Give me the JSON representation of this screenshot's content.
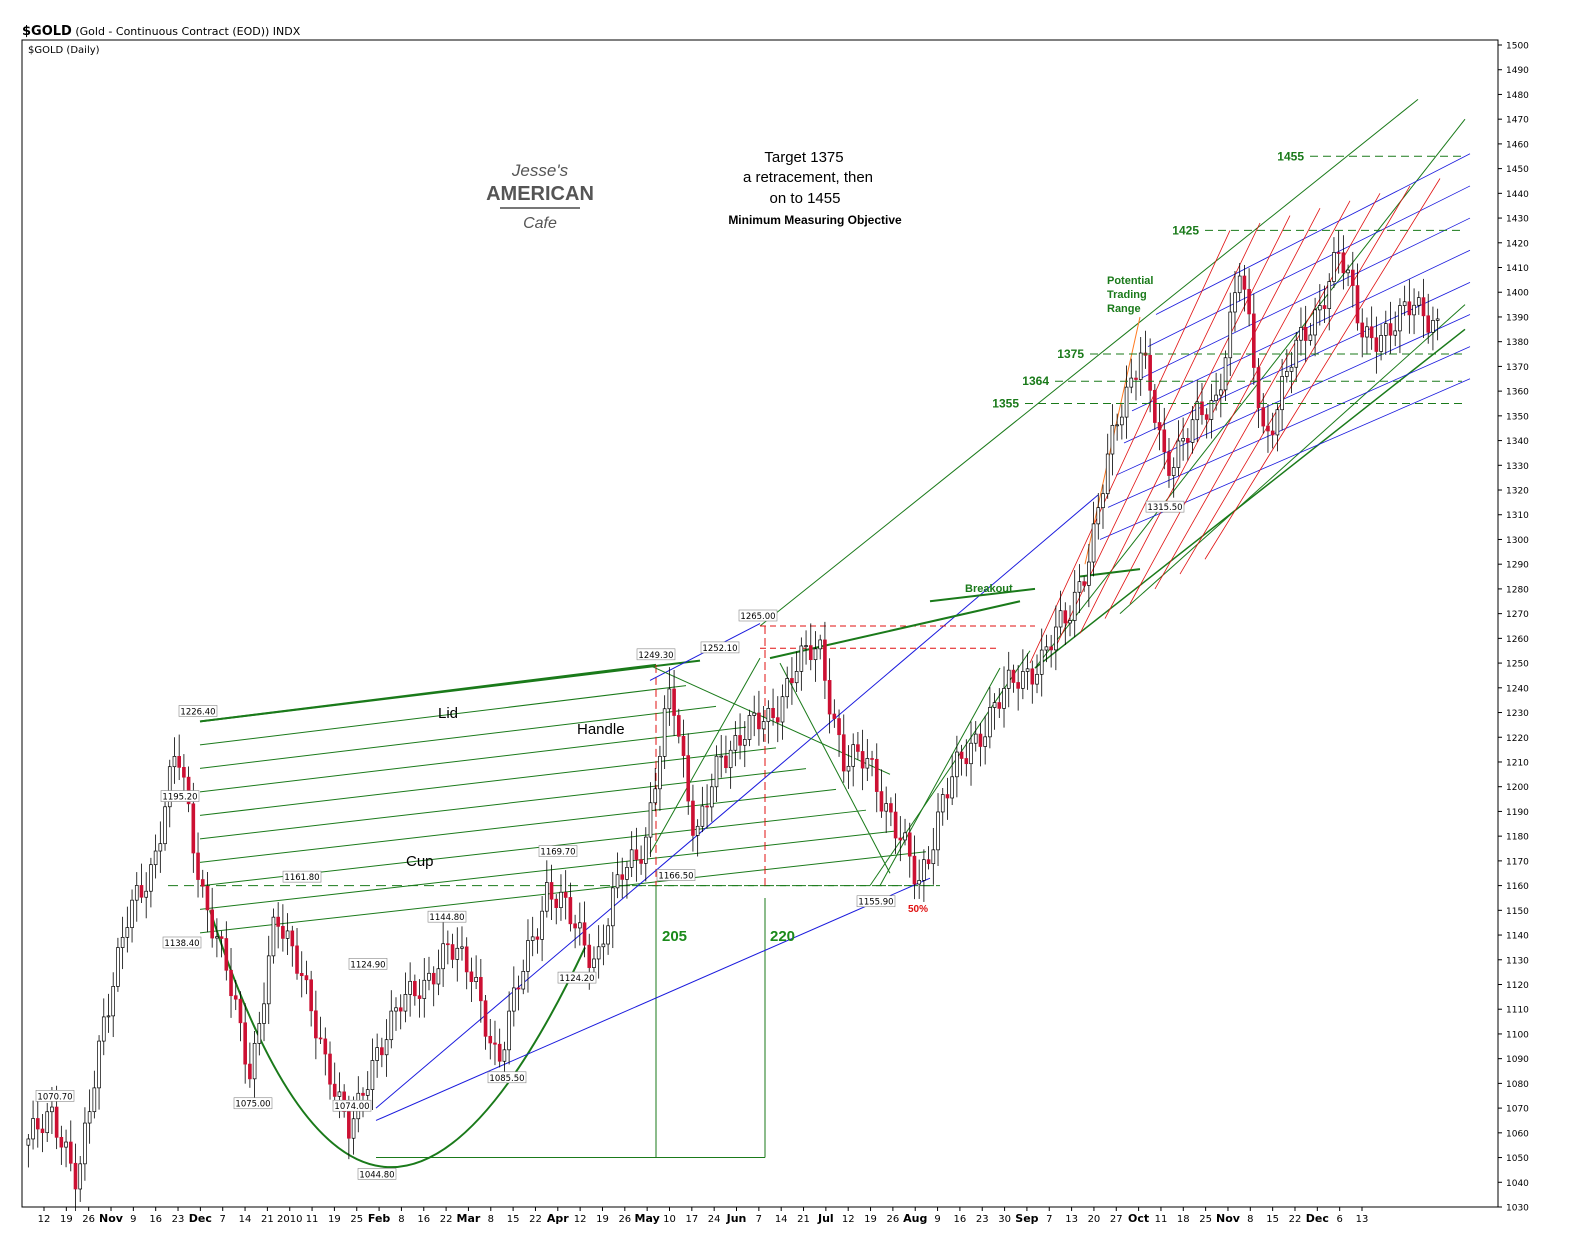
{
  "header": {
    "symbol": "$GOLD",
    "description": "(Gold - Continuous Contract (EOD))",
    "exchange": "INDX",
    "subtitle": "$GOLD (Daily)"
  },
  "logo": {
    "line1": "Jesse's",
    "line2": "AMERICAN",
    "line3": "Cafe"
  },
  "annotations": {
    "target_lines": [
      "Target 1375",
      "a retracement, then",
      "on to 1455"
    ],
    "objective": "Minimum Measuring Objective",
    "lid": "Lid",
    "handle": "Handle",
    "cup": "Cup",
    "breakout": "Breakout",
    "potential_range": [
      "Potential",
      "Trading",
      "Range"
    ],
    "measure_1": "205",
    "measure_2": "220",
    "fib": "50%"
  },
  "colors": {
    "up": "#ffffff",
    "down": "#cc1033",
    "wick": "#000000",
    "green": "#1a7a1a",
    "blue": "#1a1add",
    "red": "#e01010",
    "orange": "#ff7a20",
    "level_label": "#1a7a1a"
  },
  "chart_data": {
    "type": "candlestick",
    "title": "$GOLD (Gold - Continuous Contract (EOD)) INDX",
    "ylim": [
      1030,
      1500
    ],
    "y_ticks": [
      1030,
      1040,
      1050,
      1060,
      1070,
      1080,
      1090,
      1100,
      1110,
      1120,
      1130,
      1140,
      1150,
      1160,
      1170,
      1180,
      1190,
      1200,
      1210,
      1220,
      1230,
      1240,
      1250,
      1260,
      1270,
      1280,
      1290,
      1300,
      1310,
      1320,
      1330,
      1340,
      1350,
      1360,
      1370,
      1380,
      1390,
      1400,
      1410,
      1420,
      1430,
      1440,
      1450,
      1460,
      1470,
      1480,
      1490,
      1500
    ],
    "x_ticks": [
      "12",
      "19",
      "26",
      "Nov",
      "9",
      "16",
      "23",
      "Dec",
      "7",
      "14",
      "21",
      "2010",
      "11",
      "19",
      "25",
      "Feb",
      "8",
      "16",
      "22",
      "Mar",
      "8",
      "15",
      "22",
      "Apr",
      "12",
      "19",
      "26",
      "May",
      "10",
      "17",
      "24",
      "Jun",
      "7",
      "14",
      "21",
      "Jul",
      "12",
      "19",
      "26",
      "Aug",
      "9",
      "16",
      "23",
      "30",
      "Sep",
      "7",
      "13",
      "20",
      "27",
      "Oct",
      "11",
      "18",
      "25",
      "Nov",
      "8",
      "15",
      "22",
      "Dec",
      "6",
      "13"
    ],
    "price_labels": [
      {
        "text": "1070.70",
        "value": 1070.7
      },
      {
        "text": "1226.40",
        "value": 1226.4
      },
      {
        "text": "1195.20",
        "value": 1195.2
      },
      {
        "text": "1138.40",
        "value": 1138.4
      },
      {
        "text": "1075.00",
        "value": 1075.0
      },
      {
        "text": "1161.80",
        "value": 1161.8
      },
      {
        "text": "1124.90",
        "value": 1124.9
      },
      {
        "text": "1074.00",
        "value": 1074.0
      },
      {
        "text": "1044.80",
        "value": 1044.8
      },
      {
        "text": "1144.80",
        "value": 1144.8
      },
      {
        "text": "1085.50",
        "value": 1085.5
      },
      {
        "text": "1124.20",
        "value": 1124.2
      },
      {
        "text": "1169.70",
        "value": 1169.7
      },
      {
        "text": "1249.30",
        "value": 1249.3
      },
      {
        "text": "1252.10",
        "value": 1252.1
      },
      {
        "text": "1166.50",
        "value": 1166.5
      },
      {
        "text": "1265.00",
        "value": 1265.0
      },
      {
        "text": "1155.90",
        "value": 1155.9
      },
      {
        "text": "1315.50",
        "value": 1315.5
      }
    ],
    "levels": [
      {
        "label": "1455",
        "value": 1455
      },
      {
        "label": "1425",
        "value": 1425
      },
      {
        "label": "1375",
        "value": 1375
      },
      {
        "label": "1364",
        "value": 1364
      },
      {
        "label": "1355",
        "value": 1355
      }
    ],
    "anchors": [
      {
        "date": "Oct 12",
        "close": 1055
      },
      {
        "date": "Oct 23",
        "close": 1070
      },
      {
        "date": "Nov 3",
        "close": 1037
      },
      {
        "date": "Nov 12",
        "close": 1105
      },
      {
        "date": "Nov 20",
        "close": 1145
      },
      {
        "date": "Nov 27",
        "close": 1168
      },
      {
        "date": "Dec 2",
        "close": 1215
      },
      {
        "date": "Dec 7",
        "close": 1160
      },
      {
        "date": "Dec 14",
        "close": 1125
      },
      {
        "date": "Dec 22",
        "close": 1085
      },
      {
        "date": "Jan 11",
        "close": 1145
      },
      {
        "date": "Jan 19",
        "close": 1130
      },
      {
        "date": "Jan 28",
        "close": 1085
      },
      {
        "date": "Feb 5",
        "close": 1065
      },
      {
        "date": "Feb 11",
        "close": 1085
      },
      {
        "date": "Feb 17",
        "close": 1117
      },
      {
        "date": "Mar 1",
        "close": 1115
      },
      {
        "date": "Mar 9",
        "close": 1140
      },
      {
        "date": "Mar 16",
        "close": 1120
      },
      {
        "date": "Mar 24",
        "close": 1090
      },
      {
        "date": "Apr 1",
        "close": 1125
      },
      {
        "date": "Apr 7",
        "close": 1160
      },
      {
        "date": "Apr 16",
        "close": 1145
      },
      {
        "date": "Apr 22",
        "close": 1130
      },
      {
        "date": "Apr 28",
        "close": 1165
      },
      {
        "date": "May 5",
        "close": 1180
      },
      {
        "date": "May 12",
        "close": 1240
      },
      {
        "date": "May 21",
        "close": 1180
      },
      {
        "date": "May 27",
        "close": 1210
      },
      {
        "date": "Jun 4",
        "close": 1225
      },
      {
        "date": "Jun 10",
        "close": 1225
      },
      {
        "date": "Jun 17",
        "close": 1250
      },
      {
        "date": "Jun 25",
        "close": 1255
      },
      {
        "date": "Jul 1",
        "close": 1210
      },
      {
        "date": "Jul 9",
        "close": 1210
      },
      {
        "date": "Jul 20",
        "close": 1185
      },
      {
        "date": "Jul 28",
        "close": 1160
      },
      {
        "date": "Aug 5",
        "close": 1195
      },
      {
        "date": "Aug 13",
        "close": 1215
      },
      {
        "date": "Aug 20",
        "close": 1230
      },
      {
        "date": "Aug 30",
        "close": 1245
      },
      {
        "date": "Sep 7",
        "close": 1250
      },
      {
        "date": "Sep 14",
        "close": 1270
      },
      {
        "date": "Sep 24",
        "close": 1295
      },
      {
        "date": "Oct 6",
        "close": 1350
      },
      {
        "date": "Oct 13",
        "close": 1375
      },
      {
        "date": "Oct 20",
        "close": 1330
      },
      {
        "date": "Oct 28",
        "close": 1345
      },
      {
        "date": "Nov 1",
        "close": 1355
      },
      {
        "date": "Nov 9",
        "close": 1410
      },
      {
        "date": "Nov 16",
        "close": 1340
      },
      {
        "date": "Nov 23",
        "close": 1370
      },
      {
        "date": "Dec 1",
        "close": 1390
      },
      {
        "date": "Dec 7",
        "close": 1415
      },
      {
        "date": "Dec 14",
        "close": 1385
      },
      {
        "date": "Dec 23",
        "close": 1380
      },
      {
        "date": "Jan 4",
        "close": 1400
      },
      {
        "date": "Jan 10",
        "close": 1382
      }
    ]
  }
}
